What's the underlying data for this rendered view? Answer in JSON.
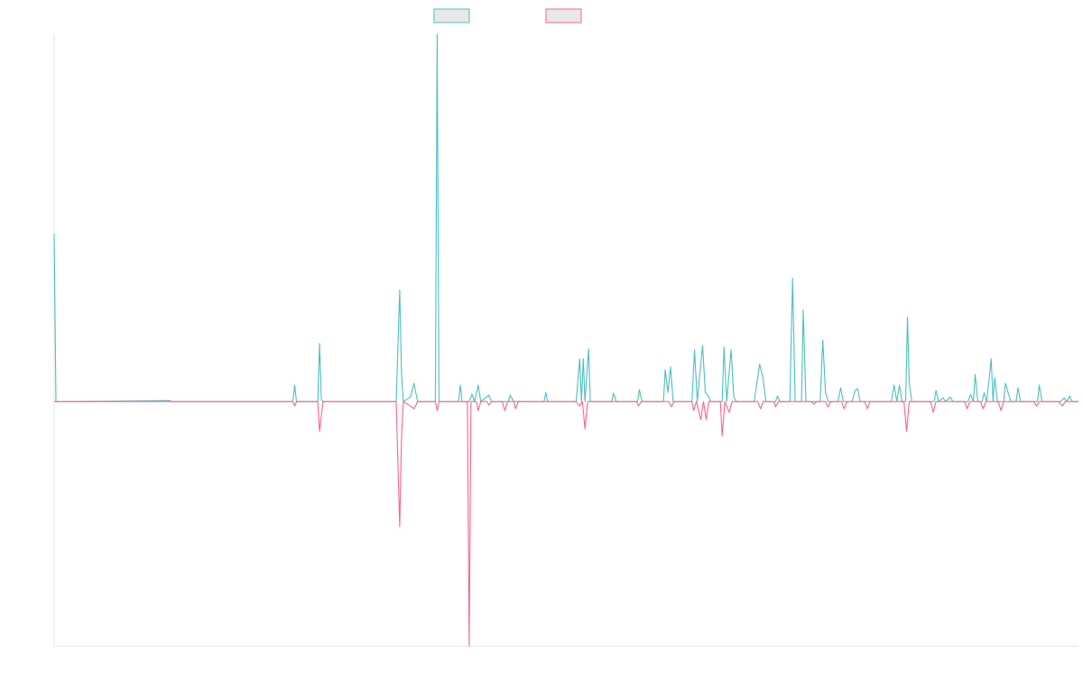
{
  "chart_data": {
    "type": "line",
    "title": "",
    "xlabel": "",
    "ylabel": "",
    "legend_position": "top-center",
    "grid": false,
    "x_range": [
      0,
      1150
    ],
    "y_range": [
      -270,
      405
    ],
    "series": [
      {
        "color": "#4bc0c0",
        "fill": "#e8e8e8",
        "points": [
          [
            0,
            185
          ],
          [
            2,
            0
          ],
          [
            130,
            1
          ],
          [
            132,
            0
          ],
          [
            268,
            0
          ],
          [
            270,
            18
          ],
          [
            272,
            0
          ],
          [
            296,
            0
          ],
          [
            298,
            64
          ],
          [
            300,
            2
          ],
          [
            302,
            0
          ],
          [
            384,
            0
          ],
          [
            388,
            123
          ],
          [
            390,
            30
          ],
          [
            392,
            0
          ],
          [
            400,
            5
          ],
          [
            404,
            20
          ],
          [
            408,
            0
          ],
          [
            428,
            0
          ],
          [
            430,
            405
          ],
          [
            432,
            0
          ],
          [
            454,
            0
          ],
          [
            456,
            18
          ],
          [
            458,
            0
          ],
          [
            466,
            0
          ],
          [
            469,
            8
          ],
          [
            472,
            0
          ],
          [
            476,
            18
          ],
          [
            479,
            0
          ],
          [
            488,
            7
          ],
          [
            491,
            0
          ],
          [
            510,
            0
          ],
          [
            512,
            7
          ],
          [
            516,
            0
          ],
          [
            550,
            0
          ],
          [
            552,
            10
          ],
          [
            554,
            0
          ],
          [
            586,
            0
          ],
          [
            590,
            47
          ],
          [
            592,
            0
          ],
          [
            594,
            47
          ],
          [
            596,
            0
          ],
          [
            600,
            58
          ],
          [
            602,
            0
          ],
          [
            626,
            0
          ],
          [
            628,
            9
          ],
          [
            631,
            0
          ],
          [
            655,
            0
          ],
          [
            657,
            13
          ],
          [
            660,
            0
          ],
          [
            684,
            0
          ],
          [
            686,
            35
          ],
          [
            689,
            10
          ],
          [
            692,
            38
          ],
          [
            695,
            0
          ],
          [
            716,
            0
          ],
          [
            719,
            57
          ],
          [
            722,
            0
          ],
          [
            728,
            62
          ],
          [
            731,
            10
          ],
          [
            734,
            7
          ],
          [
            737,
            0
          ],
          [
            750,
            0
          ],
          [
            752,
            60
          ],
          [
            755,
            0
          ],
          [
            760,
            57
          ],
          [
            763,
            5
          ],
          [
            766,
            0
          ],
          [
            786,
            0
          ],
          [
            792,
            41
          ],
          [
            796,
            25
          ],
          [
            799,
            0
          ],
          [
            810,
            0
          ],
          [
            812,
            6
          ],
          [
            815,
            0
          ],
          [
            826,
            0
          ],
          [
            829,
            136
          ],
          [
            832,
            0
          ],
          [
            839,
            0
          ],
          [
            841,
            101
          ],
          [
            844,
            0
          ],
          [
            860,
            0
          ],
          [
            863,
            68
          ],
          [
            866,
            10
          ],
          [
            869,
            0
          ],
          [
            880,
            0
          ],
          [
            883,
            15
          ],
          [
            886,
            0
          ],
          [
            896,
            0
          ],
          [
            899,
            12
          ],
          [
            902,
            14
          ],
          [
            905,
            0
          ],
          [
            940,
            0
          ],
          [
            943,
            18
          ],
          [
            946,
            0
          ],
          [
            949,
            18
          ],
          [
            952,
            0
          ],
          [
            956,
            0
          ],
          [
            958,
            93
          ],
          [
            960,
            20
          ],
          [
            963,
            0
          ],
          [
            988,
            0
          ],
          [
            990,
            12
          ],
          [
            993,
            0
          ],
          [
            998,
            4
          ],
          [
            1001,
            0
          ],
          [
            1006,
            5
          ],
          [
            1009,
            0
          ],
          [
            1026,
            0
          ],
          [
            1029,
            8
          ],
          [
            1032,
            0
          ],
          [
            1034,
            30
          ],
          [
            1037,
            0
          ],
          [
            1042,
            0
          ],
          [
            1044,
            10
          ],
          [
            1047,
            0
          ],
          [
            1052,
            47
          ],
          [
            1054,
            0
          ],
          [
            1056,
            26
          ],
          [
            1059,
            0
          ],
          [
            1066,
            0
          ],
          [
            1068,
            20
          ],
          [
            1071,
            10
          ],
          [
            1074,
            0
          ],
          [
            1080,
            0
          ],
          [
            1082,
            15
          ],
          [
            1085,
            0
          ],
          [
            1104,
            0
          ],
          [
            1106,
            18
          ],
          [
            1109,
            0
          ],
          [
            1130,
            0
          ],
          [
            1134,
            4
          ],
          [
            1137,
            0
          ],
          [
            1140,
            6
          ],
          [
            1143,
            0
          ],
          [
            1150,
            0
          ]
        ]
      },
      {
        "color": "#ff6384",
        "fill": "#e8e8e8",
        "points": [
          [
            0,
            0
          ],
          [
            268,
            0
          ],
          [
            270,
            -5
          ],
          [
            272,
            0
          ],
          [
            296,
            0
          ],
          [
            298,
            -33
          ],
          [
            300,
            -15
          ],
          [
            302,
            0
          ],
          [
            384,
            0
          ],
          [
            388,
            -138
          ],
          [
            390,
            -40
          ],
          [
            392,
            0
          ],
          [
            400,
            -5
          ],
          [
            404,
            -8
          ],
          [
            408,
            0
          ],
          [
            428,
            0
          ],
          [
            430,
            -10
          ],
          [
            432,
            0
          ],
          [
            464,
            0
          ],
          [
            466,
            -270
          ],
          [
            468,
            0
          ],
          [
            474,
            0
          ],
          [
            476,
            -10
          ],
          [
            479,
            0
          ],
          [
            486,
            0
          ],
          [
            488,
            -4
          ],
          [
            491,
            0
          ],
          [
            503,
            0
          ],
          [
            506,
            -10
          ],
          [
            509,
            0
          ],
          [
            516,
            0
          ],
          [
            518,
            -8
          ],
          [
            521,
            0
          ],
          [
            586,
            0
          ],
          [
            590,
            -5
          ],
          [
            593,
            0
          ],
          [
            596,
            -30
          ],
          [
            599,
            0
          ],
          [
            654,
            0
          ],
          [
            656,
            -5
          ],
          [
            659,
            0
          ],
          [
            690,
            0
          ],
          [
            693,
            -6
          ],
          [
            696,
            0
          ],
          [
            716,
            0
          ],
          [
            718,
            -10
          ],
          [
            721,
            0
          ],
          [
            726,
            -20
          ],
          [
            729,
            0
          ],
          [
            732,
            -20
          ],
          [
            735,
            0
          ],
          [
            748,
            0
          ],
          [
            750,
            -38
          ],
          [
            753,
            0
          ],
          [
            758,
            -12
          ],
          [
            761,
            0
          ],
          [
            790,
            0
          ],
          [
            793,
            -8
          ],
          [
            796,
            0
          ],
          [
            808,
            0
          ],
          [
            810,
            -6
          ],
          [
            813,
            0
          ],
          [
            850,
            0
          ],
          [
            853,
            -3
          ],
          [
            856,
            0
          ],
          [
            866,
            0
          ],
          [
            869,
            -6
          ],
          [
            872,
            0
          ],
          [
            884,
            0
          ],
          [
            887,
            -8
          ],
          [
            890,
            0
          ],
          [
            910,
            0
          ],
          [
            913,
            -8
          ],
          [
            916,
            0
          ],
          [
            954,
            0
          ],
          [
            957,
            -33
          ],
          [
            960,
            0
          ],
          [
            984,
            0
          ],
          [
            987,
            -12
          ],
          [
            990,
            0
          ],
          [
            1022,
            0
          ],
          [
            1025,
            -8
          ],
          [
            1028,
            0
          ],
          [
            1040,
            0
          ],
          [
            1043,
            -8
          ],
          [
            1046,
            0
          ],
          [
            1060,
            0
          ],
          [
            1063,
            -10
          ],
          [
            1066,
            0
          ],
          [
            1100,
            0
          ],
          [
            1103,
            -5
          ],
          [
            1106,
            0
          ],
          [
            1128,
            0
          ],
          [
            1132,
            -5
          ],
          [
            1135,
            0
          ],
          [
            1150,
            0
          ]
        ]
      }
    ]
  }
}
